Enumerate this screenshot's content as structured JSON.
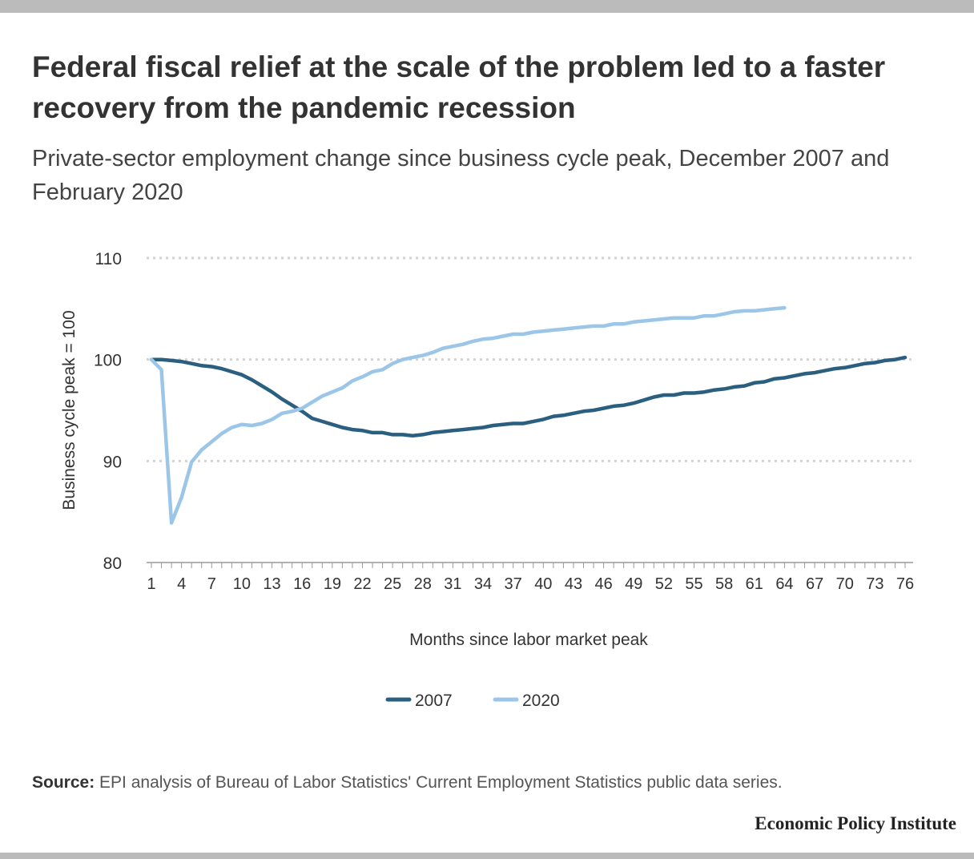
{
  "header": {
    "title": "Federal fiscal relief at the scale of the problem led to a faster recovery from the pandemic recession",
    "subtitle": "Private-sector employment change since business cycle peak, December 2007 and February 2020"
  },
  "footer": {
    "source_label": "Source:",
    "source_text": " EPI analysis of Bureau of Labor Statistics' Current Employment Statistics public data series.",
    "brand": "Economic Policy Institute"
  },
  "colors": {
    "series_2007": "#2a5f80",
    "series_2020": "#9cc6e8",
    "grid": "#d3d3d3",
    "text": "#333333"
  },
  "chart_data": {
    "type": "line",
    "xlabel": "Months since labor market peak",
    "ylabel": "Business cycle peak = 100",
    "ylim": [
      80,
      110
    ],
    "yticks": [
      80,
      90,
      100,
      110
    ],
    "xlim": [
      1,
      76
    ],
    "xticks": [
      1,
      4,
      7,
      10,
      13,
      16,
      19,
      22,
      25,
      28,
      31,
      34,
      37,
      40,
      43,
      46,
      49,
      52,
      55,
      58,
      61,
      64,
      67,
      70,
      73,
      76
    ],
    "grid": true,
    "legend_position": "bottom-center",
    "series": [
      {
        "name": "2007",
        "values": [
          100.0,
          100.0,
          99.9,
          99.8,
          99.6,
          99.4,
          99.3,
          99.1,
          98.8,
          98.5,
          98.0,
          97.4,
          96.8,
          96.1,
          95.5,
          94.9,
          94.2,
          93.9,
          93.6,
          93.3,
          93.1,
          93.0,
          92.8,
          92.8,
          92.6,
          92.6,
          92.5,
          92.6,
          92.8,
          92.9,
          93.0,
          93.1,
          93.2,
          93.3,
          93.5,
          93.6,
          93.7,
          93.7,
          93.9,
          94.1,
          94.4,
          94.5,
          94.7,
          94.9,
          95.0,
          95.2,
          95.4,
          95.5,
          95.7,
          96.0,
          96.3,
          96.5,
          96.5,
          96.7,
          96.7,
          96.8,
          97.0,
          97.1,
          97.3,
          97.4,
          97.7,
          97.8,
          98.1,
          98.2,
          98.4,
          98.6,
          98.7,
          98.9,
          99.1,
          99.2,
          99.4,
          99.6,
          99.7,
          99.9,
          100.0,
          100.2
        ]
      },
      {
        "name": "2020",
        "values": [
          100.0,
          99.0,
          83.9,
          86.4,
          89.9,
          91.1,
          91.9,
          92.7,
          93.3,
          93.6,
          93.5,
          93.7,
          94.1,
          94.7,
          94.9,
          95.2,
          95.8,
          96.4,
          96.8,
          97.2,
          97.9,
          98.3,
          98.8,
          99.0,
          99.6,
          100.0,
          100.2,
          100.4,
          100.7,
          101.1,
          101.3,
          101.5,
          101.8,
          102.0,
          102.1,
          102.3,
          102.5,
          102.5,
          102.7,
          102.8,
          102.9,
          103.0,
          103.1,
          103.2,
          103.3,
          103.3,
          103.5,
          103.5,
          103.7,
          103.8,
          103.9,
          104.0,
          104.1,
          104.1,
          104.1,
          104.3,
          104.3,
          104.5,
          104.7,
          104.8,
          104.8,
          104.9,
          105.0,
          105.1
        ]
      }
    ]
  }
}
